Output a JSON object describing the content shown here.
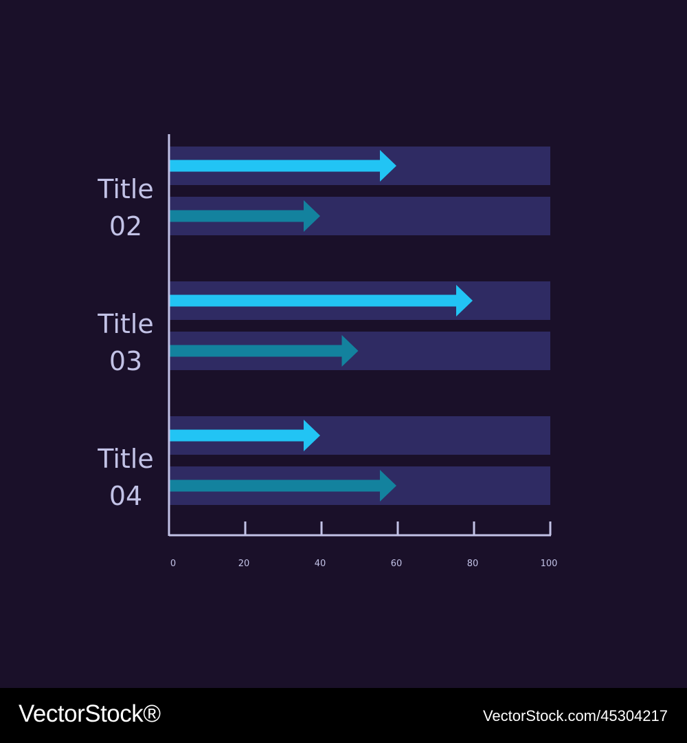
{
  "chart_data": {
    "type": "bar",
    "categories": [
      "Title 02",
      "Title 03",
      "Title 04"
    ],
    "category_lines": [
      [
        "Title",
        "02"
      ],
      [
        "Title",
        "03"
      ],
      [
        "Title",
        "04"
      ]
    ],
    "series": [
      {
        "values": [
          60,
          80,
          40
        ]
      },
      {
        "values": [
          40,
          50,
          60
        ]
      }
    ],
    "xlim": [
      0,
      100
    ],
    "xticks": [
      0,
      20,
      40,
      60,
      80,
      100
    ],
    "track_max": 100,
    "grid": false,
    "colors": {
      "background": "#1a1029",
      "track": "#2f2b63",
      "series_1": "#22c4f4",
      "series_2": "#13829e",
      "axis": "#c2c2e6"
    }
  },
  "footer": {
    "brand": "VectorStock®",
    "image_id": "VectorStock.com/45304217"
  }
}
